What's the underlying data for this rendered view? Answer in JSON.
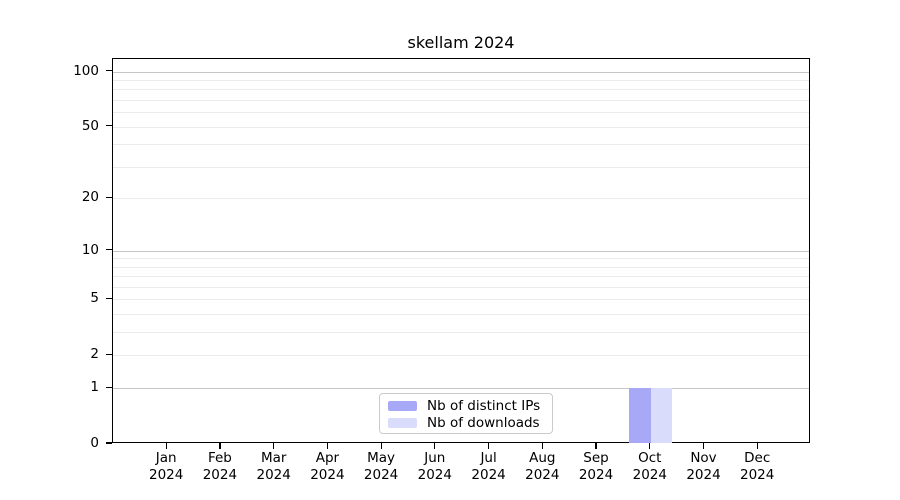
{
  "chart_data": {
    "type": "bar",
    "title": "skellam 2024",
    "categories": [
      "Jan",
      "Feb",
      "Mar",
      "Apr",
      "May",
      "Jun",
      "Jul",
      "Aug",
      "Sep",
      "Oct",
      "Nov",
      "Dec"
    ],
    "x_tick_year": "2024",
    "series": [
      {
        "name": "Nb of distinct IPs",
        "color": "#a7a9f7",
        "values": [
          0,
          0,
          0,
          0,
          0,
          0,
          0,
          0,
          0,
          1,
          0,
          0
        ]
      },
      {
        "name": "Nb of downloads",
        "color": "#dadcfb",
        "values": [
          0,
          0,
          0,
          0,
          0,
          0,
          0,
          0,
          0,
          1,
          0,
          0
        ]
      }
    ],
    "y_axis": {
      "scale": "log10(1+y)",
      "tick_values": [
        100,
        50,
        20,
        10,
        5,
        2,
        1,
        0
      ],
      "major_grid_values": [
        1,
        10,
        100
      ],
      "minor_grid_values": [
        2,
        3,
        4,
        5,
        6,
        7,
        8,
        9,
        20,
        30,
        40,
        50,
        60,
        70,
        80,
        90
      ]
    },
    "legend": {
      "location": "lower center"
    },
    "colors": {
      "grid_major": "#c6c6c6",
      "grid_minor": "#ebebeb",
      "spine": "#000000",
      "background": "#ffffff"
    }
  }
}
